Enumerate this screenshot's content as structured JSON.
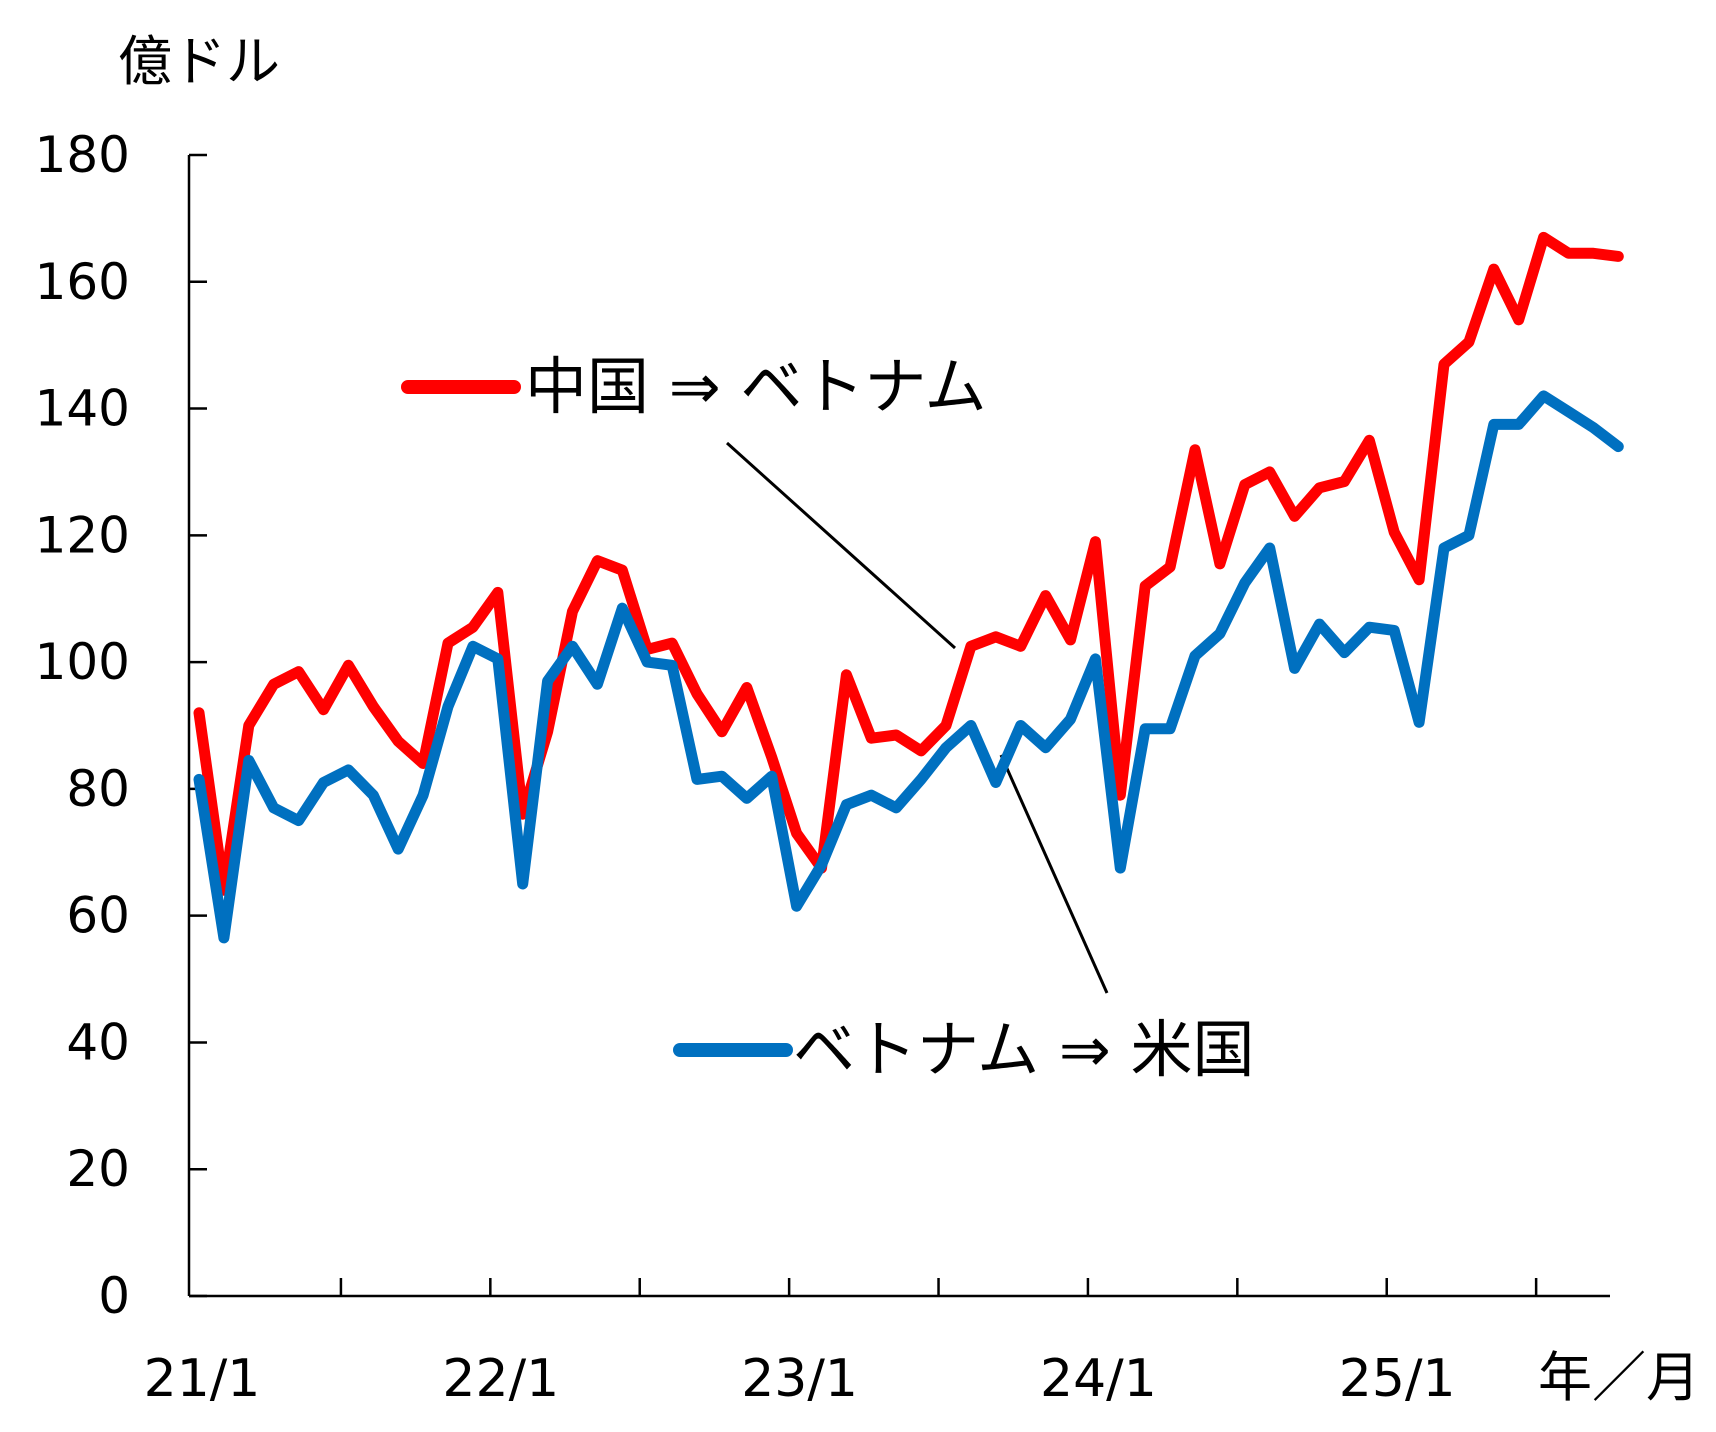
{
  "chart_data": {
    "type": "line",
    "title": "",
    "y_unit_label": "億ドル",
    "x_unit_label": "年／月",
    "ylim": [
      0,
      180
    ],
    "y_ticks": [
      0,
      20,
      40,
      60,
      80,
      100,
      120,
      140,
      160,
      180
    ],
    "x_tick_labels": [
      "21/1",
      "22/1",
      "23/1",
      "24/1",
      "25/1"
    ],
    "x_tick_label_months": [
      0,
      12,
      24,
      36,
      48
    ],
    "x_minor_tick_months": [
      6,
      18,
      30,
      42,
      54
    ],
    "x_range_months": [
      0,
      57
    ],
    "grid": false,
    "series": [
      {
        "name": "中国 ⇒ ベトナム",
        "color": "#ff0000",
        "values": [
          92,
          64,
          90,
          96.5,
          98.5,
          92.5,
          99.5,
          93,
          87.5,
          84,
          103,
          105.5,
          111,
          76,
          89,
          108,
          116,
          114.5,
          102,
          103,
          95,
          89,
          96,
          85,
          73,
          67.5,
          98,
          88,
          88.5,
          86,
          90,
          102.5,
          104,
          102.5,
          110.5,
          103.5,
          119,
          79,
          112,
          115,
          133.5,
          115.5,
          128,
          130,
          123,
          127.5,
          128.5,
          135,
          120.5,
          113,
          147,
          150.5,
          162,
          154,
          167,
          164.5,
          164.5,
          164
        ]
      },
      {
        "name": "ベトナム ⇒ 米国",
        "color": "#0070c0",
        "values": [
          81.5,
          56.5,
          84.5,
          77,
          75,
          81,
          83,
          79,
          70.5,
          79,
          93,
          102.5,
          100.5,
          65,
          97,
          102.5,
          96.5,
          108.5,
          100,
          99.5,
          81.5,
          82,
          78.5,
          82,
          61.5,
          68,
          77.5,
          79,
          77,
          81.5,
          86.5,
          90,
          81,
          90,
          86.5,
          91,
          100.5,
          67.5,
          89.5,
          89.5,
          101,
          104.5,
          112.5,
          118,
          99,
          106,
          101.5,
          105.5,
          105,
          90.5,
          118,
          120,
          137.5,
          137.5,
          142,
          139.5,
          137,
          134
        ]
      }
    ]
  },
  "legend": {
    "items": [
      {
        "label": "中国 ⇒ ベトナム",
        "color": "#ff0000"
      },
      {
        "label": "ベトナム ⇒ 米国",
        "color": "#0070c0"
      }
    ]
  }
}
